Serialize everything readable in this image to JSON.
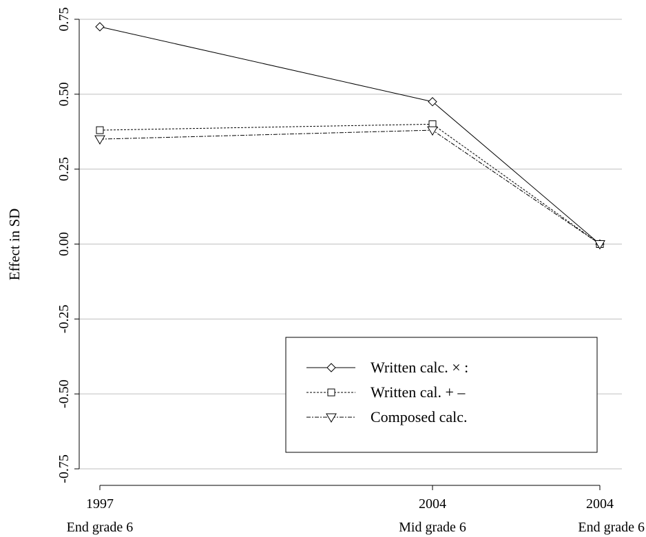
{
  "chart_data": {
    "type": "line",
    "ylabel": "Effect in SD",
    "ylim": [
      -0.75,
      0.75
    ],
    "yticks": [
      -0.75,
      -0.5,
      -0.25,
      0.0,
      0.25,
      0.5,
      0.75
    ],
    "ytick_labels": [
      "-0.75",
      "-0.50",
      "-0.25",
      "0.00",
      "0.25",
      "0.50",
      "0.75"
    ],
    "x": [
      1997,
      2004.5,
      2004.9
    ],
    "categories": [
      {
        "year": "1997",
        "period": "End grade 6"
      },
      {
        "year": "2004",
        "period": "Mid grade 6"
      },
      {
        "year": "2004",
        "period": "End grade 6"
      }
    ],
    "grid": true,
    "legend_position": "bottom-right",
    "series": [
      {
        "name": "Written calc. × :",
        "marker": "diamond",
        "line": "solid",
        "values": [
          0.725,
          0.475,
          0.0
        ]
      },
      {
        "name": "Written cal. + –",
        "marker": "square",
        "line": "dotted",
        "values": [
          0.38,
          0.4,
          0.0
        ]
      },
      {
        "name": "Composed calc.",
        "marker": "triangle-down",
        "line": "dash-dot",
        "values": [
          0.35,
          0.38,
          0.0
        ]
      }
    ]
  }
}
